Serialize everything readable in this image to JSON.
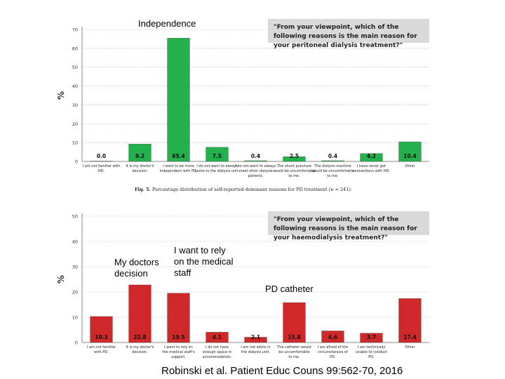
{
  "annotations": {
    "independence": "Independence",
    "my_doctors_decision_line1": "My doctors",
    "my_doctors_decision_line2": "decision",
    "rely_staff_line1": "I want to rely",
    "rely_staff_line2": "on the medical",
    "rely_staff_line3": "staff",
    "pd_catheter": "PD catheter"
  },
  "citation": "Robinski et al. Patient Educ Couns 99:562-70, 2016",
  "colors": {
    "green": "#22b14c",
    "red": "#d02828",
    "axis": "#888888",
    "grid": "#b0b0b0"
  },
  "chart_data": [
    {
      "type": "bar",
      "question": "\"From your viewpoint, which of the following reasons is the main reason for your peritoneal dialysis treatment?\"",
      "caption_label": "Fig. 5.",
      "caption_text": "Percentage distribution of self-reported dominant reasons for PD treatment (n = 241).",
      "ylabel": "%",
      "ylim": [
        0,
        70
      ],
      "yticks": [
        0,
        10,
        20,
        30,
        40,
        50,
        60,
        70
      ],
      "ytick_labels": [
        "0",
        "10",
        "20",
        "30",
        "40",
        "50",
        "60",
        "70"
      ],
      "categories": [
        [
          "I am not familiar with",
          "HD."
        ],
        [
          "It is my doctor's",
          "decision."
        ],
        [
          "I want to be more",
          "independent with PD."
        ],
        [
          "I do not want to always",
          "come to the dialysis unit."
        ],
        [
          "I do not want to always",
          "meet other dialysis",
          "patients."
        ],
        [
          "The shunt puncture",
          "would be uncomfortable",
          "to me."
        ],
        [
          "The dialysis machine",
          "would be uncomfortable",
          "to me."
        ],
        [
          "I have never got",
          "connections with HD."
        ],
        [
          "Other"
        ]
      ],
      "values": [
        0.0,
        9.2,
        65.4,
        7.5,
        0.4,
        2.5,
        0.4,
        4.2,
        10.4
      ],
      "value_labels": [
        "0.0",
        "9.2",
        "65.4",
        "7.5",
        "0.4",
        "2.5",
        "0.4",
        "4.2",
        "10.4"
      ],
      "grid": true
    },
    {
      "type": "bar",
      "question": "\"From your viewpoint, which of the following reasons is the main reason for your haemodialysis treatment?\"",
      "ylabel": "%",
      "ylim": [
        0,
        50
      ],
      "yticks": [
        0,
        10,
        20,
        30,
        40,
        50
      ],
      "ytick_labels": [
        "0",
        "10",
        "20",
        "30",
        "40",
        "50"
      ],
      "categories": [
        [
          "I am not familiar",
          "with PD."
        ],
        [
          "It is my doctor's",
          "decision."
        ],
        [
          "I want to rely on",
          "the medical staff's",
          "support."
        ],
        [
          "I do not have",
          "enough space in",
          "accommodation."
        ],
        [
          "I am not alone in",
          "the dialysis unit."
        ],
        [
          "The catheter would",
          "be uncomfortable",
          "to me."
        ],
        [
          "I am afraid of the",
          "circumstances of",
          "PD."
        ],
        [
          "I am technically",
          "unable to conduct",
          "PD."
        ],
        [
          "Other"
        ]
      ],
      "values": [
        10.3,
        22.8,
        19.5,
        4.1,
        2.1,
        15.8,
        4.6,
        3.7,
        17.4
      ],
      "value_labels": [
        "10.3",
        "22.8",
        "19.5",
        "4.1",
        "2.1",
        "15.8",
        "4.6",
        "3.7",
        "17.4"
      ],
      "grid": true
    }
  ]
}
